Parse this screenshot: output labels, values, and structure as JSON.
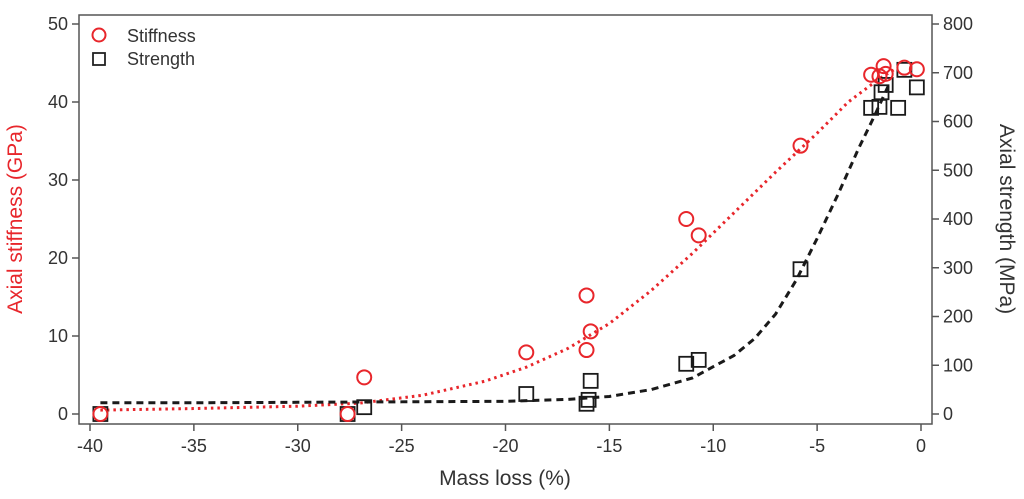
{
  "chart_data": {
    "type": "scatter",
    "title": "",
    "xlabel": "Mass loss (%)",
    "ylabel_left": "Axial stiffness (GPa)",
    "ylabel_right": "Axial strength (MPa)",
    "xlim": [
      -40,
      0
    ],
    "ylim_left": [
      0,
      50
    ],
    "ylim_right": [
      0,
      800
    ],
    "xticks": [
      -40,
      -35,
      -30,
      -25,
      -20,
      -15,
      -10,
      -5,
      0
    ],
    "yticks_left": [
      0,
      10,
      20,
      30,
      40,
      50
    ],
    "yticks_right": [
      0,
      100,
      200,
      300,
      400,
      500,
      600,
      700,
      800
    ],
    "grid": false,
    "legend_position": "top-left",
    "colors": {
      "stiffness": "#e8262b",
      "strength": "#1a1a1a",
      "axis": "#555555"
    },
    "series": [
      {
        "name": "Stiffness",
        "axis": "left",
        "marker": "circle",
        "points": [
          [
            -39.5,
            0
          ],
          [
            -27.6,
            0
          ],
          [
            -26.8,
            4.7
          ],
          [
            -19.0,
            7.9
          ],
          [
            -16.1,
            8.2
          ],
          [
            -16.1,
            15.2
          ],
          [
            -15.9,
            10.6
          ],
          [
            -11.3,
            25.0
          ],
          [
            -10.7,
            22.9
          ],
          [
            -5.8,
            34.4
          ],
          [
            -2.4,
            43.5
          ],
          [
            -2.0,
            43.3
          ],
          [
            -1.8,
            44.6
          ],
          [
            -1.7,
            43.6
          ],
          [
            -0.8,
            44.4
          ],
          [
            -0.2,
            44.2
          ]
        ],
        "fit": [
          [
            -39.5,
            0.5
          ],
          [
            -35,
            0.7
          ],
          [
            -30,
            1.0
          ],
          [
            -27,
            1.4
          ],
          [
            -24,
            2.4
          ],
          [
            -21,
            4.2
          ],
          [
            -19,
            6.0
          ],
          [
            -17,
            8.4
          ],
          [
            -15,
            11.6
          ],
          [
            -13,
            15.8
          ],
          [
            -11,
            20.6
          ],
          [
            -9,
            25.8
          ],
          [
            -7,
            31.0
          ],
          [
            -5,
            36.0
          ],
          [
            -3.5,
            40.0
          ],
          [
            -2,
            43.0
          ],
          [
            -1.2,
            44.3
          ]
        ]
      },
      {
        "name": "Strength",
        "axis": "right",
        "marker": "square",
        "points": [
          [
            -39.5,
            0
          ],
          [
            -27.6,
            0
          ],
          [
            -26.8,
            14
          ],
          [
            -19.0,
            41
          ],
          [
            -16.1,
            21
          ],
          [
            -16.0,
            29
          ],
          [
            -15.9,
            68
          ],
          [
            -11.3,
            103
          ],
          [
            -10.7,
            111
          ],
          [
            -5.8,
            297
          ],
          [
            -2.4,
            628
          ],
          [
            -2.0,
            630
          ],
          [
            -1.9,
            660
          ],
          [
            -1.7,
            675
          ],
          [
            -1.1,
            628
          ],
          [
            -0.8,
            706
          ],
          [
            -0.2,
            670
          ]
        ],
        "fit": [
          [
            -39.5,
            23
          ],
          [
            -35,
            23
          ],
          [
            -30,
            24
          ],
          [
            -25,
            25
          ],
          [
            -20,
            26
          ],
          [
            -17,
            30
          ],
          [
            -15,
            36
          ],
          [
            -13,
            50
          ],
          [
            -11,
            74
          ],
          [
            -9,
            120
          ],
          [
            -8,
            155
          ],
          [
            -7,
            205
          ],
          [
            -6,
            275
          ],
          [
            -5,
            360
          ],
          [
            -4,
            450
          ],
          [
            -3,
            545
          ],
          [
            -2.2,
            615
          ],
          [
            -1.5,
            680
          ]
        ]
      }
    ]
  }
}
